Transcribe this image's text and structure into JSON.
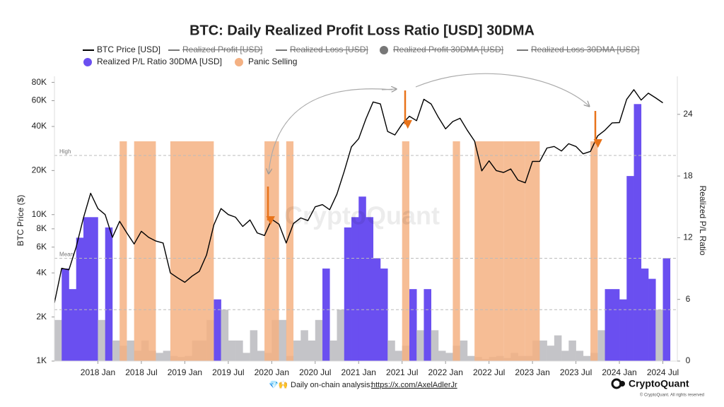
{
  "chart_data": {
    "type": "line",
    "title": "BTC: Daily Realized Profit Loss Ratio [USD] 30DMA",
    "x": [
      "2017-07",
      "2017-08",
      "2017-09",
      "2017-10",
      "2017-11",
      "2017-12",
      "2018-01",
      "2018-02",
      "2018-03",
      "2018-04",
      "2018-05",
      "2018-06",
      "2018-07",
      "2018-08",
      "2018-09",
      "2018-10",
      "2018-11",
      "2018-12",
      "2019-01",
      "2019-02",
      "2019-03",
      "2019-04",
      "2019-05",
      "2019-06",
      "2019-07",
      "2019-08",
      "2019-09",
      "2019-10",
      "2019-11",
      "2019-12",
      "2020-01",
      "2020-02",
      "2020-03",
      "2020-04",
      "2020-05",
      "2020-06",
      "2020-07",
      "2020-08",
      "2020-09",
      "2020-10",
      "2020-11",
      "2020-12",
      "2021-01",
      "2021-02",
      "2021-03",
      "2021-04",
      "2021-05",
      "2021-06",
      "2021-07",
      "2021-08",
      "2021-09",
      "2021-10",
      "2021-11",
      "2021-12",
      "2022-01",
      "2022-02",
      "2022-03",
      "2022-04",
      "2022-05",
      "2022-06",
      "2022-07",
      "2022-08",
      "2022-09",
      "2022-10",
      "2022-11",
      "2022-12",
      "2023-01",
      "2023-02",
      "2023-03",
      "2023-04",
      "2023-05",
      "2023-06",
      "2023-07",
      "2023-08",
      "2023-09",
      "2023-10",
      "2023-11",
      "2023-12",
      "2024-01",
      "2024-02",
      "2024-03",
      "2024-04",
      "2024-05",
      "2024-06",
      "2024-07"
    ],
    "series": [
      {
        "name": "BTC Price [USD]",
        "color": "#000000",
        "marker": "line",
        "values": [
          2500,
          4300,
          4200,
          6000,
          9500,
          14000,
          11000,
          10000,
          7000,
          9000,
          7500,
          6300,
          7700,
          7000,
          6600,
          6400,
          4000,
          3700,
          3450,
          3800,
          4100,
          5300,
          8500,
          11000,
          10000,
          9600,
          8300,
          9200,
          7500,
          7200,
          9300,
          8600,
          6400,
          8700,
          9500,
          9100,
          11300,
          11700,
          10800,
          13800,
          19700,
          29000,
          33000,
          45000,
          58800,
          57000,
          37000,
          35000,
          41500,
          47000,
          43800,
          61300,
          57000,
          46300,
          38500,
          43200,
          45500,
          37700,
          31800,
          19900,
          23300,
          20000,
          19400,
          20500,
          17200,
          16500,
          23100,
          23100,
          28500,
          29200,
          27200,
          30500,
          29200,
          26000,
          27000,
          34500,
          37700,
          42300,
          42500,
          61200,
          71300,
          60600,
          67500,
          62700,
          58000
        ]
      },
      {
        "name": "Realized P/L Ratio 30DMA [USD]",
        "color": "#6a4ff0",
        "low_color": "#c4c4c8",
        "highlight_above": 5,
        "marker": "dot",
        "axis": "y2",
        "values": [
          4,
          9,
          7,
          12,
          14,
          14,
          4,
          13,
          2,
          1.5,
          2,
          1,
          2,
          1,
          0.8,
          1,
          0.5,
          0.4,
          0.5,
          2,
          2,
          4,
          6,
          5,
          2,
          2,
          0.8,
          3,
          1,
          0.8,
          4,
          4,
          0.5,
          2,
          3,
          2,
          4,
          9,
          2,
          5,
          13,
          14,
          16,
          14,
          10,
          9,
          2,
          1,
          1.5,
          7,
          3,
          7,
          3,
          1,
          0.8,
          1.5,
          2,
          0.5,
          0.4,
          0.2,
          0.4,
          0.5,
          0.3,
          0.8,
          0.5,
          0.5,
          2,
          2,
          1.5,
          2.5,
          1,
          2,
          1,
          0.5,
          0.8,
          3,
          7,
          7,
          6,
          18,
          25,
          9,
          8,
          5,
          10
        ]
      }
    ],
    "hidden_series": [
      {
        "name": "Realized Profit [USD]",
        "marker": "line"
      },
      {
        "name": "Realized Loss [USD]",
        "marker": "line"
      },
      {
        "name": "Realized Profit 30DMA [USD]",
        "marker": "dot"
      },
      {
        "name": "Realized Loss 30DMA [USD]",
        "marker": "line"
      }
    ],
    "panic_selling": {
      "name": "Panic Selling",
      "color": "#f4b183",
      "ranges": [
        {
          "start": "2018-04",
          "end": "2018-04"
        },
        {
          "start": "2018-06",
          "end": "2018-08"
        },
        {
          "start": "2018-11",
          "end": "2019-04"
        },
        {
          "start": "2019-12",
          "end": "2020-01"
        },
        {
          "start": "2020-03",
          "end": "2020-03"
        },
        {
          "start": "2021-07",
          "end": "2021-07"
        },
        {
          "start": "2022-02",
          "end": "2022-02"
        },
        {
          "start": "2022-05",
          "end": "2022-08"
        },
        {
          "start": "2022-09",
          "end": "2022-11"
        },
        {
          "start": "2022-12",
          "end": "2023-01"
        },
        {
          "start": "2023-09",
          "end": "2023-09"
        }
      ]
    },
    "reference_lines": [
      {
        "label": "High",
        "value": 20
      },
      {
        "label": "Mean",
        "value": 10
      },
      {
        "value": 5
      }
    ],
    "xlim": [
      "2017-07",
      "2024-09"
    ],
    "xticks": [
      {
        "value": "2018-01",
        "label": "2018 Jan"
      },
      {
        "value": "2018-07",
        "label": "2018 Jul"
      },
      {
        "value": "2019-01",
        "label": "2019 Jan"
      },
      {
        "value": "2019-07",
        "label": "2019 Jul"
      },
      {
        "value": "2020-01",
        "label": "2020 Jan"
      },
      {
        "value": "2020-07",
        "label": "2020 Jul"
      },
      {
        "value": "2021-01",
        "label": "2021 Jan"
      },
      {
        "value": "2021-07",
        "label": "2021 Jul"
      },
      {
        "value": "2022-01",
        "label": "2022 Jan"
      },
      {
        "value": "2022-07",
        "label": "2022 Jul"
      },
      {
        "value": "2023-01",
        "label": "2023 Jan"
      },
      {
        "value": "2023-07",
        "label": "2023 Jul"
      },
      {
        "value": "2024-01",
        "label": "2024 Jan"
      },
      {
        "value": "2024-07",
        "label": "2024 Jul"
      }
    ],
    "ylabel": "BTC Price ($)",
    "log_y": true,
    "ylim": [
      1000,
      88000
    ],
    "yticks": [
      {
        "value": 1000,
        "label": "1K"
      },
      {
        "value": 2000,
        "label": "2K"
      },
      {
        "value": 4000,
        "label": "4K"
      },
      {
        "value": 6000,
        "label": "6K"
      },
      {
        "value": 8000,
        "label": "8K"
      },
      {
        "value": 10000,
        "label": "10K"
      },
      {
        "value": 20000,
        "label": "20K"
      },
      {
        "value": 40000,
        "label": "40K"
      },
      {
        "value": 60000,
        "label": "60K"
      },
      {
        "value": 80000,
        "label": "80K"
      }
    ],
    "y2label": "Realized P/L Ratio",
    "y2lim": [
      0,
      27.7
    ],
    "y2ticks": [
      0,
      6,
      12,
      18,
      24
    ],
    "watermark": "CryptoQuant"
  },
  "footer": {
    "emoji": "💎🙌",
    "text": "Daily on-chain analysis:",
    "link": "https://x.com/AxelAdlerJr"
  },
  "branding": {
    "logo": "CryptoQuant",
    "copyright": "© CryptoQuant. All rights reserved"
  }
}
